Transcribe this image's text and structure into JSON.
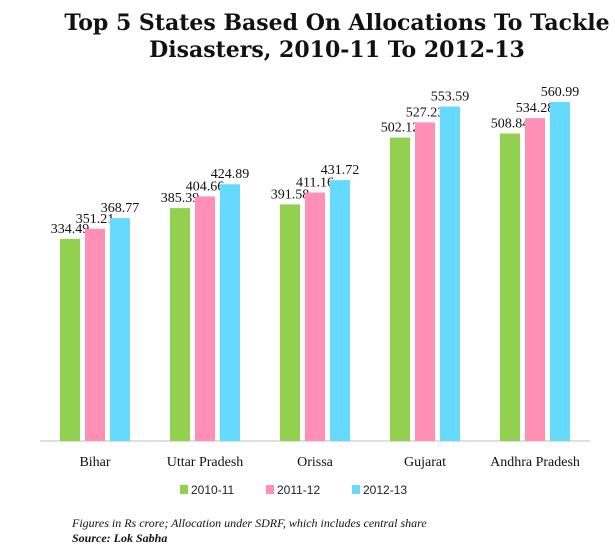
{
  "chart_data": {
    "type": "bar",
    "title": "Top 5 States Based On Allocations To Tackle Disasters, 2010-11 To 2012-13",
    "title_lines": [
      "Top 5 States Based On Allocations To Tackle",
      "Disasters, 2010-11 To 2012-13"
    ],
    "categories": [
      "Bihar",
      "Uttar Pradesh",
      "Orissa",
      "Gujarat",
      "Andhra Pradesh"
    ],
    "series": [
      {
        "name": "2010-11",
        "color": "#92d050",
        "values": [
          334.49,
          385.39,
          391.58,
          502.12,
          508.84
        ]
      },
      {
        "name": "2011-12",
        "color": "#ff8fb4",
        "values": [
          351.21,
          404.66,
          411.16,
          527.23,
          534.28
        ]
      },
      {
        "name": "2012-13",
        "color": "#66d9ff",
        "values": [
          368.77,
          424.89,
          431.72,
          553.59,
          560.99
        ]
      }
    ],
    "value_labels": [
      [
        "334.49",
        "385.39",
        "391.58",
        "502.12",
        "508.84"
      ],
      [
        "351.21",
        "404.66",
        "411.16",
        "527.23",
        "534.28"
      ],
      [
        "368.77",
        "424.89",
        "431.72",
        "553.59",
        "560.99"
      ]
    ],
    "xlabel": "",
    "ylabel": "",
    "ylim": [
      0,
      600
    ],
    "grid": false,
    "legend_position": "bottom"
  },
  "notes": {
    "units": "Figures in Rs crore; Allocation under SDRF, which includes central share",
    "source": "Source: Lok Sabha"
  }
}
